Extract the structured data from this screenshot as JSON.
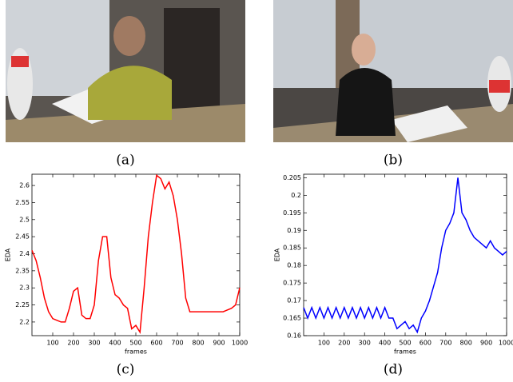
{
  "captions": [
    "(a)",
    "(b)",
    "(c)",
    "(d)"
  ],
  "chart_data": [
    {
      "type": "line",
      "xlabel": "frames",
      "ylabel": "EDA",
      "x": [
        0,
        20,
        40,
        60,
        80,
        100,
        120,
        140,
        160,
        180,
        200,
        220,
        240,
        260,
        280,
        300,
        320,
        340,
        360,
        380,
        400,
        420,
        440,
        460,
        480,
        500,
        520,
        540,
        560,
        580,
        600,
        620,
        640,
        660,
        680,
        700,
        720,
        740,
        760,
        780,
        800,
        820,
        840,
        860,
        880,
        900,
        920,
        940,
        960,
        980,
        1000
      ],
      "series": [
        {
          "color": "#ff0000",
          "values": [
            2.41,
            2.38,
            2.33,
            2.27,
            2.23,
            2.21,
            2.205,
            2.2,
            2.2,
            2.24,
            2.29,
            2.3,
            2.22,
            2.21,
            2.21,
            2.25,
            2.38,
            2.45,
            2.45,
            2.33,
            2.28,
            2.27,
            2.25,
            2.24,
            2.18,
            2.19,
            2.17,
            2.3,
            2.45,
            2.55,
            2.63,
            2.62,
            2.59,
            2.61,
            2.57,
            2.5,
            2.4,
            2.27,
            2.23,
            2.23,
            2.23,
            2.23,
            2.23,
            2.23,
            2.23,
            2.23,
            2.23,
            2.235,
            2.24,
            2.25,
            2.3
          ]
        }
      ],
      "xlim": [
        0,
        1000
      ],
      "xticks": [
        100,
        200,
        300,
        400,
        500,
        600,
        700,
        800,
        900,
        1000
      ],
      "ylim": [
        2.16,
        2.633
      ],
      "yticks": [
        2.2,
        2.25,
        2.3,
        2.35,
        2.4,
        2.45,
        2.5,
        2.55,
        2.6
      ]
    },
    {
      "type": "line",
      "xlabel": "frames",
      "ylabel": "EDA",
      "x": [
        0,
        20,
        40,
        60,
        80,
        100,
        120,
        140,
        160,
        180,
        200,
        220,
        240,
        260,
        280,
        300,
        320,
        340,
        360,
        380,
        400,
        420,
        440,
        460,
        480,
        500,
        520,
        540,
        560,
        580,
        600,
        620,
        640,
        660,
        680,
        700,
        720,
        740,
        760,
        780,
        800,
        820,
        840,
        860,
        880,
        900,
        920,
        940,
        960,
        980,
        1000
      ],
      "series": [
        {
          "color": "#0000ff",
          "values": [
            0.168,
            0.165,
            0.168,
            0.165,
            0.168,
            0.165,
            0.168,
            0.165,
            0.168,
            0.165,
            0.168,
            0.165,
            0.168,
            0.165,
            0.168,
            0.165,
            0.168,
            0.165,
            0.168,
            0.165,
            0.168,
            0.165,
            0.165,
            0.162,
            0.163,
            0.164,
            0.162,
            0.163,
            0.161,
            0.165,
            0.167,
            0.17,
            0.174,
            0.178,
            0.185,
            0.19,
            0.192,
            0.195,
            0.205,
            0.195,
            0.193,
            0.19,
            0.188,
            0.187,
            0.186,
            0.185,
            0.187,
            0.185,
            0.184,
            0.183,
            0.184
          ]
        }
      ],
      "xlim": [
        0,
        1000
      ],
      "xticks": [
        100,
        200,
        300,
        400,
        500,
        600,
        700,
        800,
        900,
        1000
      ],
      "ylim": [
        0.16,
        0.206
      ],
      "yticks": [
        0.16,
        0.165,
        0.17,
        0.175,
        0.18,
        0.185,
        0.19,
        0.195,
        0.2,
        0.205
      ]
    }
  ]
}
